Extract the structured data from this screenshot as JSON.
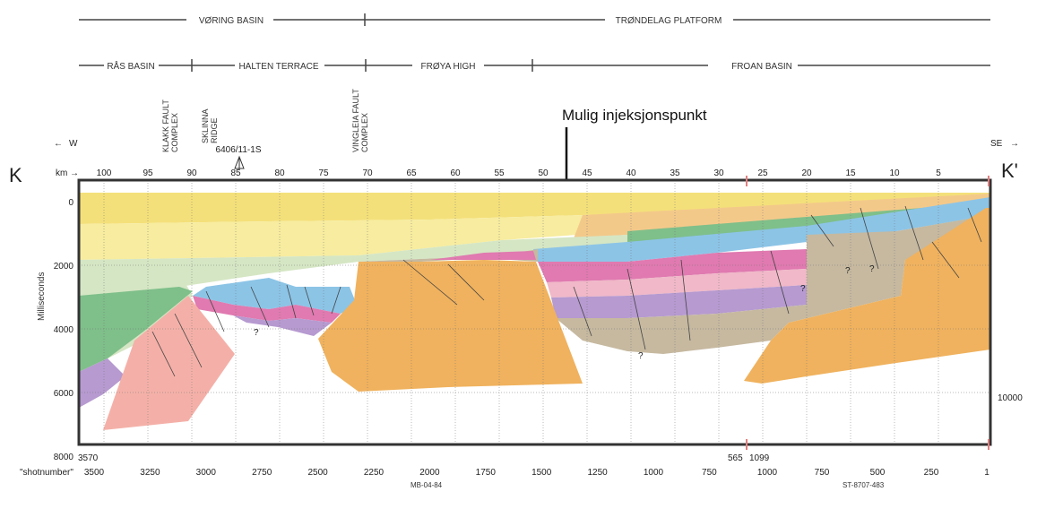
{
  "header": {
    "top_row": [
      "VØRING BASIN",
      "TRØNDELAG PLATFORM"
    ],
    "second_row": [
      "RÅS BASIN",
      "HALTEN TERRACE",
      "FRØYA HIGH",
      "FROAN BASIN"
    ]
  },
  "structures": {
    "klakk": [
      "KLAKK FAULT",
      "COMPLEX"
    ],
    "sklinna": [
      "SKLINNA",
      "RIDGE"
    ],
    "vingleia": [
      "VINGLEIA FAULT",
      "COMPLEX"
    ],
    "well": "6406/11-1S"
  },
  "annotation": "Mulig injeksjonspunkt",
  "direction": {
    "west": "W",
    "east": "SE"
  },
  "section_labels": {
    "left": "K",
    "right": "K'"
  },
  "axis": {
    "km_label": "km",
    "km_ticks": [
      "100",
      "95",
      "90",
      "85",
      "80",
      "75",
      "70",
      "65",
      "60",
      "55",
      "50",
      "45",
      "40",
      "35",
      "30",
      "25",
      "20",
      "15",
      "10",
      "5"
    ],
    "y_label": "Milliseconds",
    "y_ticks": [
      "0",
      "2000",
      "4000",
      "6000",
      "8000"
    ],
    "right_label": "10000",
    "shot_label": "\"shotnumber\"",
    "shot_line1": [
      {
        "label": "3570"
      },
      {
        "label": "565"
      },
      {
        "label": "1099"
      }
    ],
    "shot_ticks_left": [
      "3500",
      "3250",
      "3000",
      "2750",
      "2500",
      "2250",
      "2000",
      "1750",
      "1500",
      "1250",
      "1000",
      "750"
    ],
    "shot_ticks_right": [
      "1000",
      "750",
      "500",
      "250",
      "1"
    ],
    "line_names": [
      "MB-04-84",
      "ST-8707-483"
    ]
  },
  "colors": {
    "yellow": "#f4e07a",
    "light_yellow": "#f7ec9f",
    "orange_band": "#f3c98a",
    "light_green": "#d5e6c4",
    "green": "#7fbf8a",
    "blue": "#8cc4e6",
    "magenta": "#e07ab0",
    "pink_light": "#f0b8c8",
    "purple": "#b69ad0",
    "tan": "#c6b9a0",
    "basement": "#f0b25e",
    "salmon": "#f4b0a8"
  }
}
